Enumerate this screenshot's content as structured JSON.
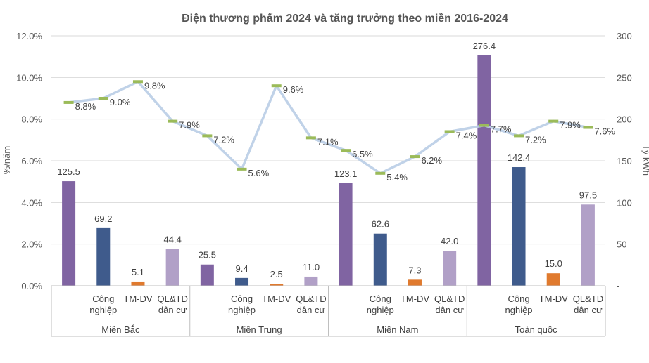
{
  "chart_data": {
    "type": "bar+line",
    "title": "Điện thương phẩm 2024 và tăng trưởng theo miền 2016-2024",
    "y_left_label": "%/năm",
    "y_right_label": "Tỷ kWh",
    "y_left_ticks": [
      "12.0%",
      "10.0%",
      "8.0%",
      "6.0%",
      "4.0%",
      "2.0%",
      "0.0%"
    ],
    "y_right_ticks": [
      "300",
      "250",
      "200",
      "150",
      "100",
      "50",
      "-"
    ],
    "ylim_left": [
      0,
      12
    ],
    "ylim_right": [
      0,
      300
    ],
    "colors": {
      "total": "#8064a2",
      "cn": "#3f5b8c",
      "tm": "#e07a2e",
      "ql": "#b1a0c7",
      "line": "#b9cde5",
      "marker": "#9bbb59"
    },
    "groups": [
      {
        "name": "Miền Bắc",
        "subcategories": [
          {
            "label1": "",
            "label2": "",
            "key": "total",
            "bar": 125.5,
            "bar_label": "125.5",
            "growth": 8.8,
            "growth_label": "8.8%"
          },
          {
            "label1": "Công",
            "label2": "nghiệp",
            "key": "cn",
            "bar": 69.2,
            "bar_label": "69.2",
            "growth": 9.0,
            "growth_label": "9.0%"
          },
          {
            "label1": "TM-DV",
            "label2": "",
            "key": "tm",
            "bar": 5.1,
            "bar_label": "5.1",
            "growth": 9.8,
            "growth_label": "9.8%"
          },
          {
            "label1": "QL&TD",
            "label2": "dân cư",
            "key": "ql",
            "bar": 44.4,
            "bar_label": "44.4",
            "growth": 7.9,
            "growth_label": "7.9%"
          }
        ]
      },
      {
        "name": "Miền Trung",
        "subcategories": [
          {
            "label1": "",
            "label2": "",
            "key": "total",
            "bar": 25.5,
            "bar_label": "25.5",
            "growth": 7.2,
            "growth_label": "7.2%"
          },
          {
            "label1": "Công",
            "label2": "nghiệp",
            "key": "cn",
            "bar": 9.4,
            "bar_label": "9.4",
            "growth": 5.6,
            "growth_label": "5.6%"
          },
          {
            "label1": "TM-DV",
            "label2": "",
            "key": "tm",
            "bar": 2.5,
            "bar_label": "2.5",
            "growth": 9.6,
            "growth_label": "9.6%"
          },
          {
            "label1": "QL&TD",
            "label2": "dân cư",
            "key": "ql",
            "bar": 11.0,
            "bar_label": "11.0",
            "growth": 7.1,
            "growth_label": "7.1%"
          }
        ]
      },
      {
        "name": "Miền Nam",
        "subcategories": [
          {
            "label1": "",
            "label2": "",
            "key": "total",
            "bar": 123.1,
            "bar_label": "123.1",
            "growth": 6.5,
            "growth_label": "6.5%"
          },
          {
            "label1": "Công",
            "label2": "nghiệp",
            "key": "cn",
            "bar": 62.6,
            "bar_label": "62.6",
            "growth": 5.4,
            "growth_label": "5.4%"
          },
          {
            "label1": "TM-DV",
            "label2": "",
            "key": "tm",
            "bar": 7.3,
            "bar_label": "7.3",
            "growth": 6.2,
            "growth_label": "6.2%"
          },
          {
            "label1": "QL&TD",
            "label2": "dân cư",
            "key": "ql",
            "bar": 42.0,
            "bar_label": "42.0",
            "growth": 7.4,
            "growth_label": "7.4%"
          }
        ]
      },
      {
        "name": "Toàn quốc",
        "subcategories": [
          {
            "label1": "",
            "label2": "",
            "key": "total",
            "bar": 276.4,
            "bar_label": "276.4",
            "growth": 7.7,
            "growth_label": "7.7%"
          },
          {
            "label1": "Công",
            "label2": "nghiệp",
            "key": "cn",
            "bar": 142.4,
            "bar_label": "142.4",
            "growth": 7.2,
            "growth_label": "7.2%"
          },
          {
            "label1": "TM-DV",
            "label2": "",
            "key": "tm",
            "bar": 15.0,
            "bar_label": "15.0",
            "growth": 7.9,
            "growth_label": "7.9%"
          },
          {
            "label1": "QL&TD",
            "label2": "dân cư",
            "key": "ql",
            "bar": 97.5,
            "bar_label": "97.5",
            "growth": 7.6,
            "growth_label": "7.6%"
          }
        ]
      }
    ]
  }
}
